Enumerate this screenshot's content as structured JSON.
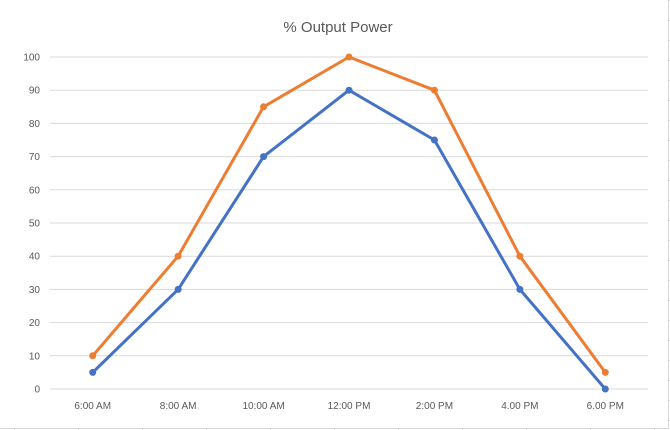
{
  "chart_data": {
    "type": "line",
    "title": "% Output Power",
    "categories": [
      "6:00 AM",
      "8:00 AM",
      "10:00 AM",
      "12:00 PM",
      "2:00 PM",
      "4.00 PM",
      "6.00 PM"
    ],
    "series": [
      {
        "color": "#4472c4",
        "values": [
          5,
          30,
          70,
          90,
          75,
          30,
          0
        ]
      },
      {
        "color": "#ed7d31",
        "values": [
          10,
          40,
          85,
          100,
          90,
          40,
          5
        ]
      }
    ],
    "ylim": [
      0,
      100
    ],
    "yticks": [
      "0",
      "10",
      "20",
      "30",
      "40",
      "50",
      "60",
      "70",
      "80",
      "90",
      "100"
    ],
    "grid": true
  }
}
